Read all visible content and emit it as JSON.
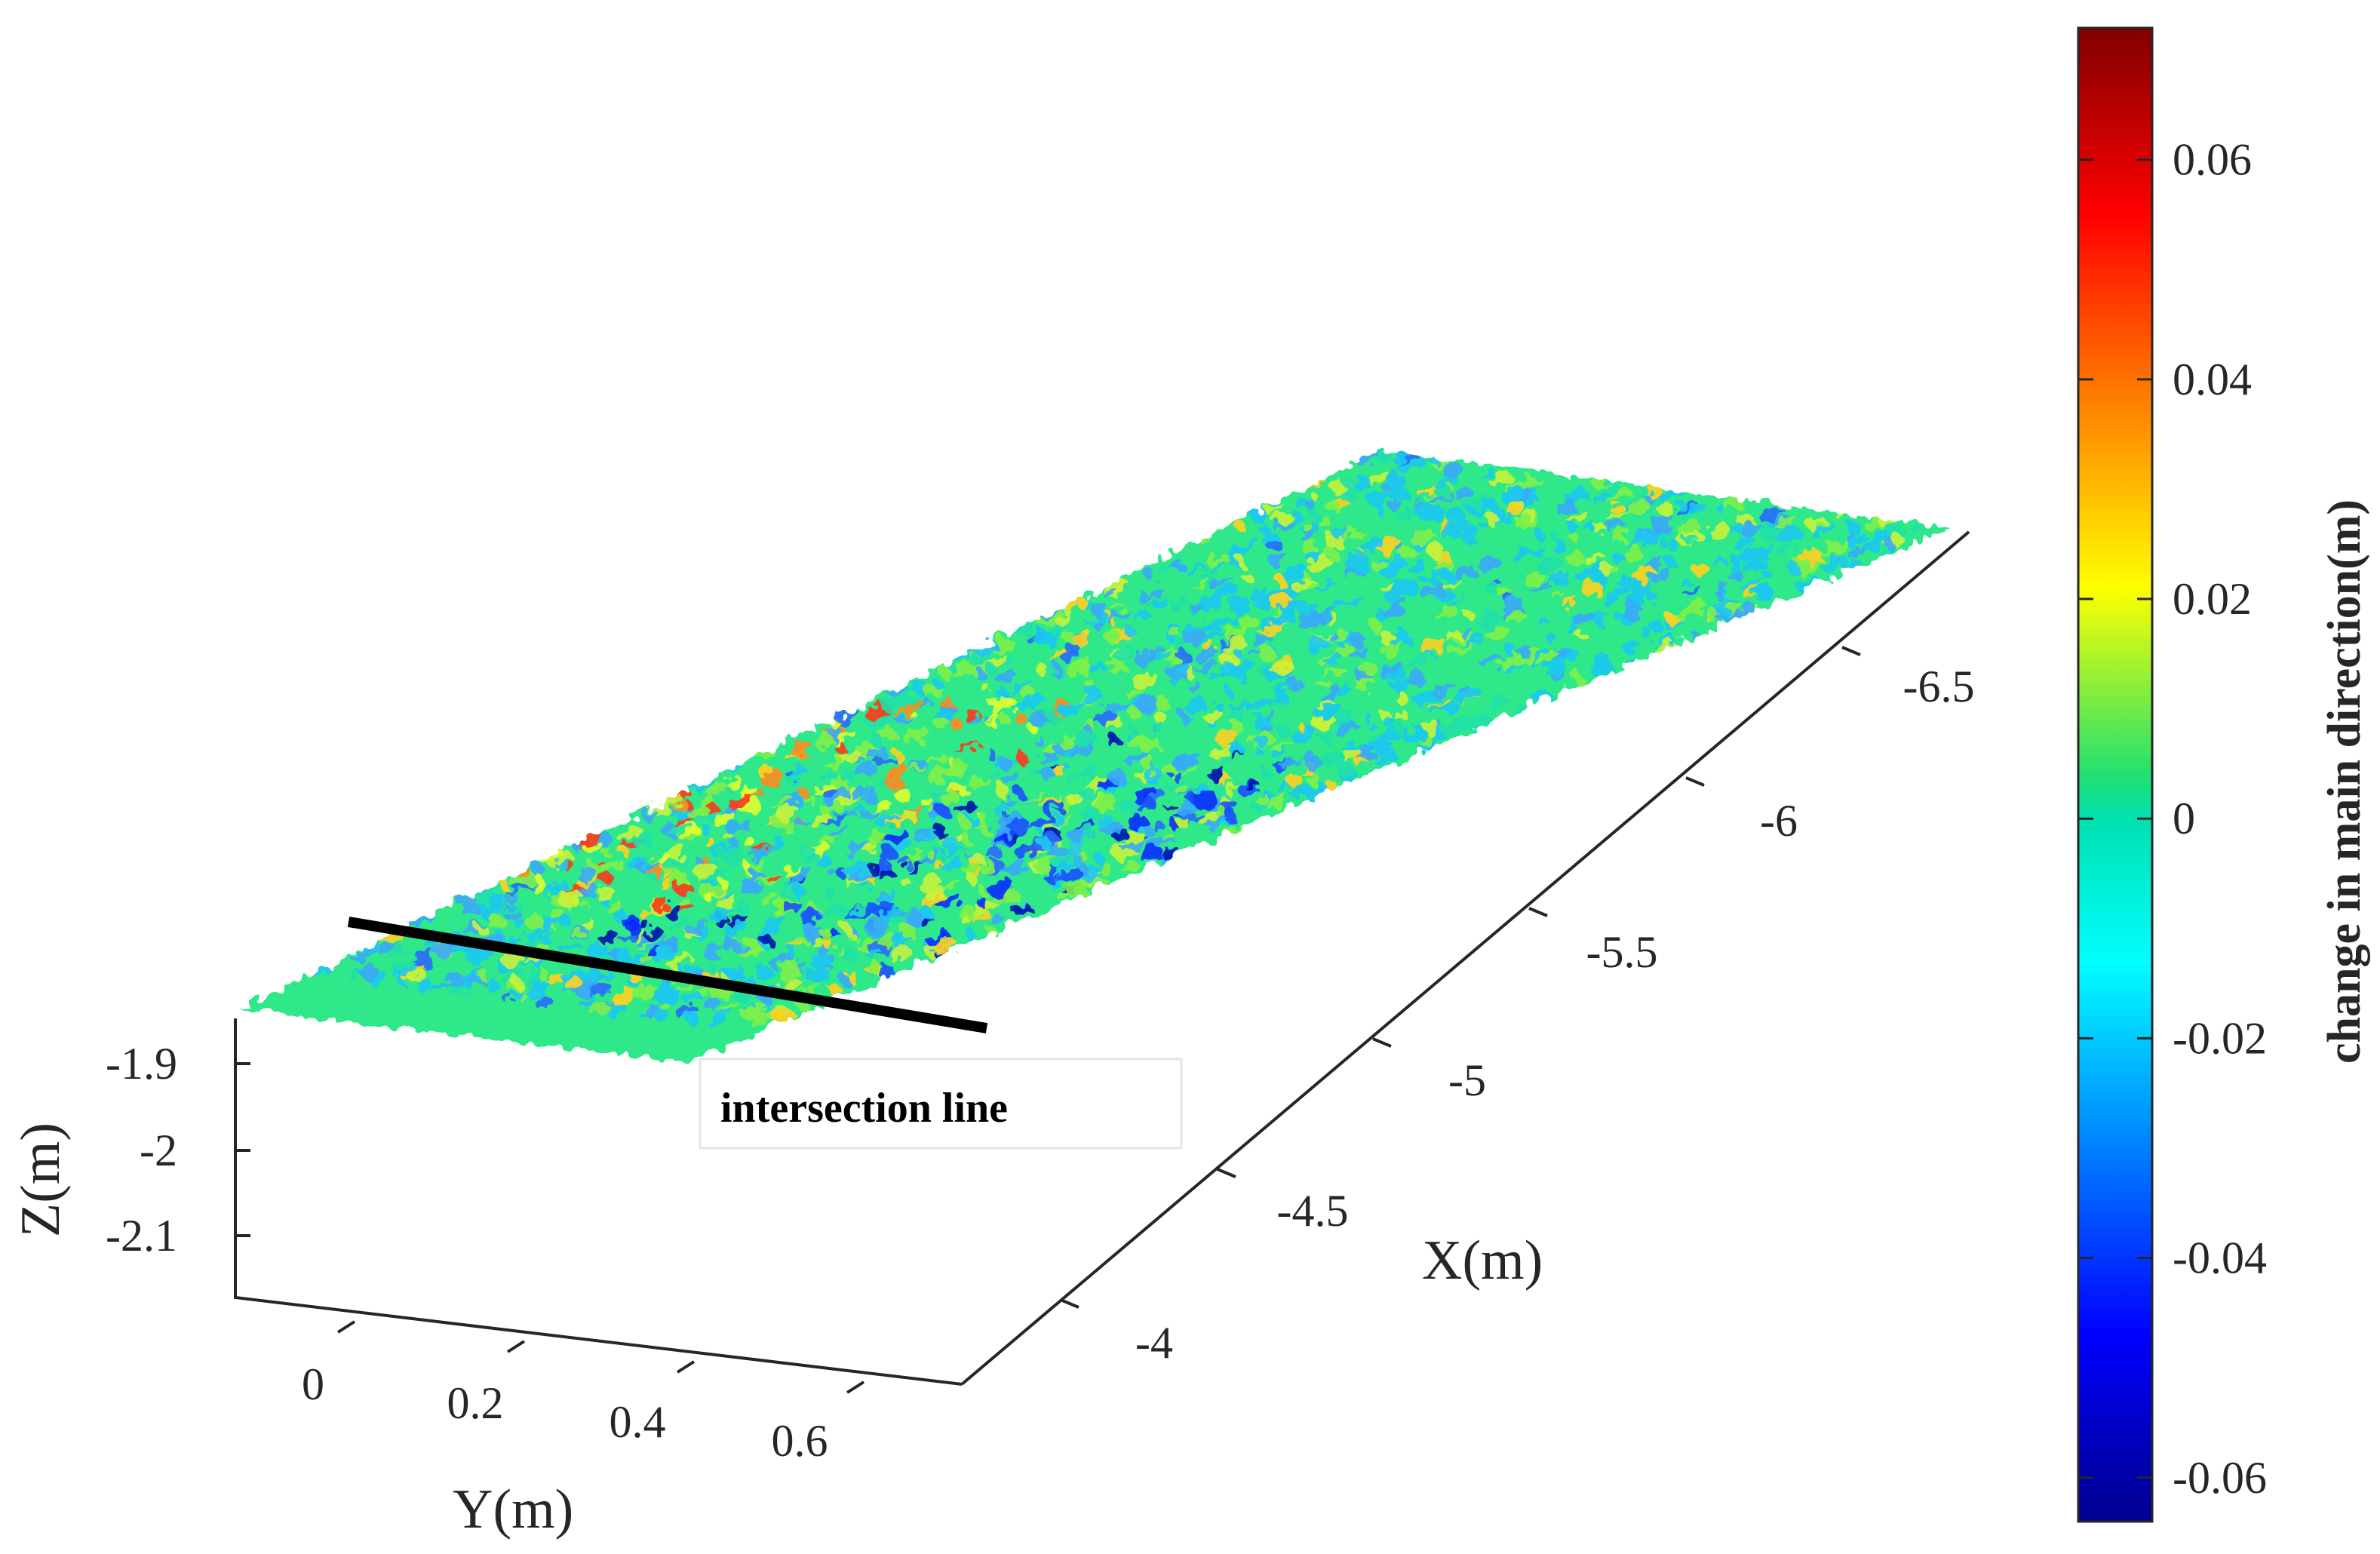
{
  "chart_data": {
    "type": "scatter",
    "subtype": "3d-point-cloud",
    "title": "",
    "xlabel": "X(m)",
    "ylabel": "Y(m)",
    "zlabel": "Z(m)",
    "x_ticks": [
      "-4",
      "-4.5",
      "-5",
      "-5.5",
      "-6",
      "-6.5"
    ],
    "y_ticks": [
      "0",
      "0.2",
      "0.4",
      "0.6"
    ],
    "z_ticks": [
      "-1.9",
      "-2",
      "-2.1"
    ],
    "xlim": [
      -3.8,
      -6.75
    ],
    "ylim": [
      -0.1,
      0.75
    ],
    "zlim": [
      -2.16,
      -1.86
    ],
    "grid": false,
    "colorbar": {
      "label": "change in main direction(m)",
      "colormap": "jet",
      "ticks": [
        "0.06",
        "0.04",
        "0.02",
        "0",
        "-0.02",
        "-0.04",
        "-0.06"
      ],
      "tick_values": [
        0.06,
        0.04,
        0.02,
        0,
        -0.02,
        -0.04,
        -0.06
      ],
      "range": [
        -0.064,
        0.072
      ]
    },
    "annotation": {
      "text": "intersection line",
      "line_color": "#000000"
    },
    "colors": {
      "dominant": "#2ee88a",
      "background": "#ffffff",
      "axis": "#262626"
    }
  }
}
